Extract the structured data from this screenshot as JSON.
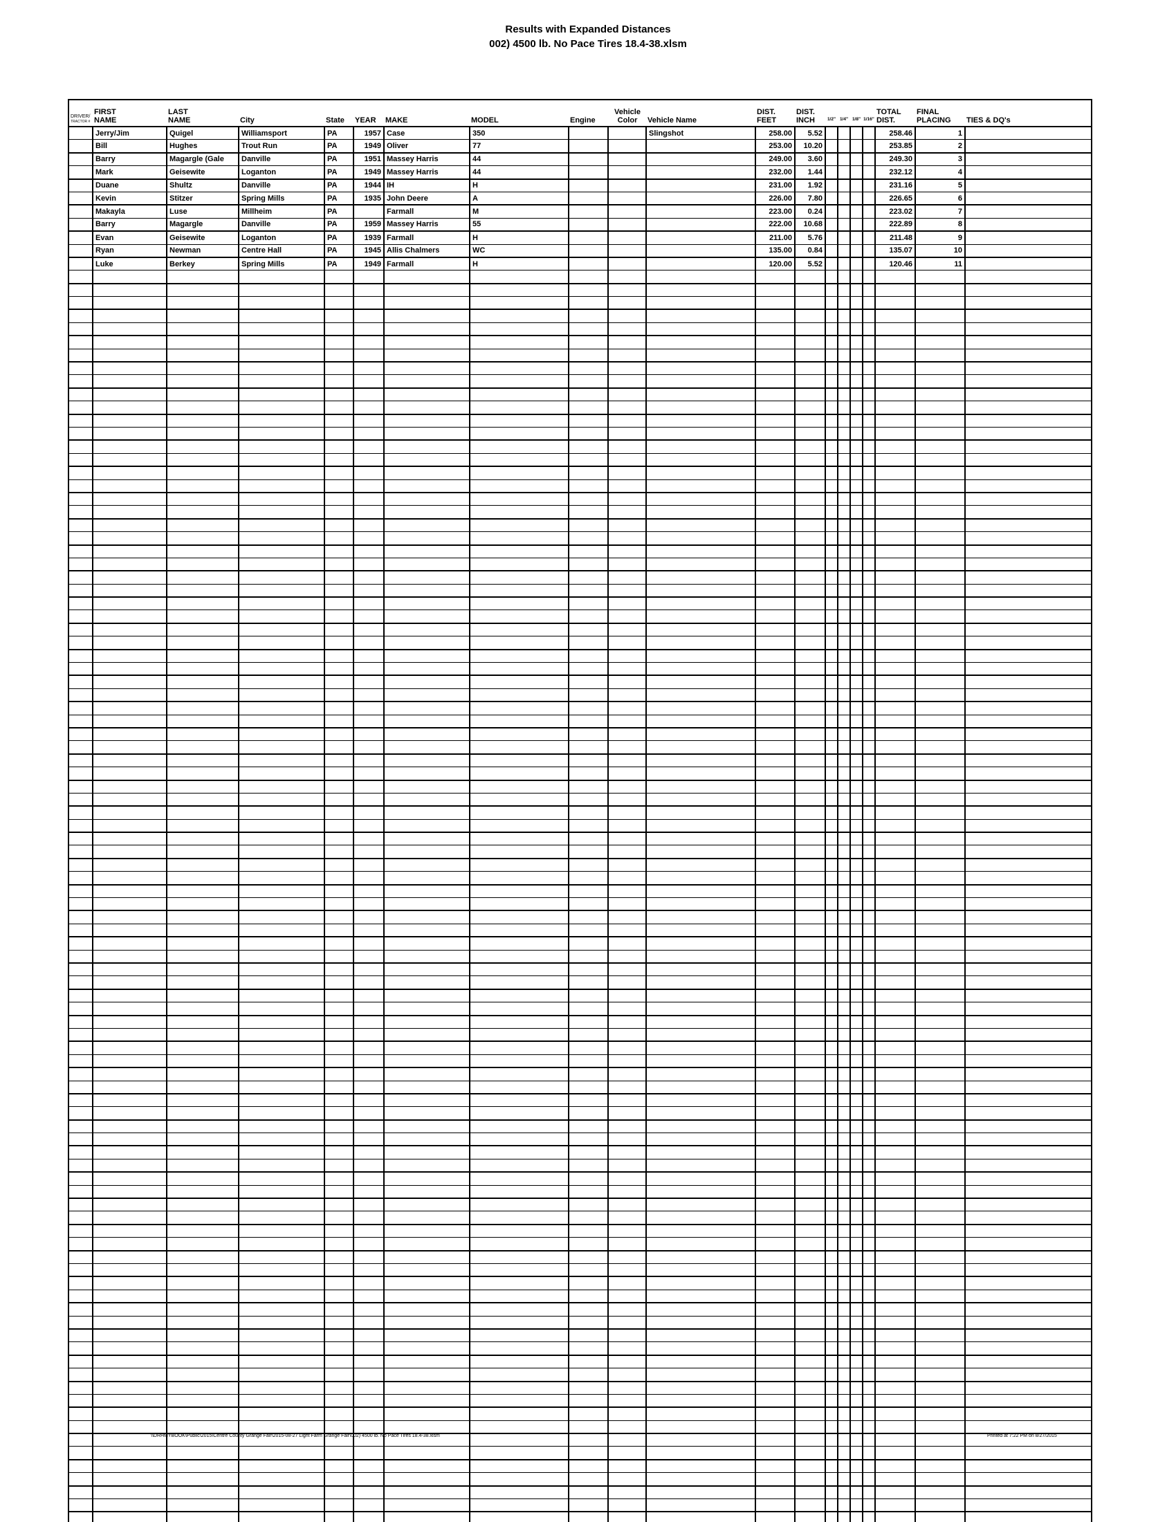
{
  "title": "Results with Expanded Distances",
  "subtitle": "002) 4500 lb. No Pace Tires 18.4-38.xlsm",
  "table": {
    "columns": [
      {
        "key": "tractor",
        "label": "DRIVER/\nTRACTOR #",
        "align": "left",
        "style": "driver"
      },
      {
        "key": "first_name",
        "label": "FIRST\nNAME",
        "align": "left"
      },
      {
        "key": "last_name",
        "label": "LAST\nNAME",
        "align": "left"
      },
      {
        "key": "city",
        "label": "City",
        "align": "left"
      },
      {
        "key": "state",
        "label": "State",
        "align": "left"
      },
      {
        "key": "year",
        "label": "YEAR",
        "align": "right"
      },
      {
        "key": "make",
        "label": "MAKE",
        "align": "left"
      },
      {
        "key": "model",
        "label": "MODEL",
        "align": "left"
      },
      {
        "key": "engine",
        "label": "Engine",
        "align": "left"
      },
      {
        "key": "vehicle_color",
        "label": "Vehicle\nColor",
        "align": "left",
        "header_align": "center"
      },
      {
        "key": "vehicle_name",
        "label": "Vehicle Name",
        "align": "left"
      },
      {
        "key": "dist_feet",
        "label": "DIST.\nFEET",
        "align": "right"
      },
      {
        "key": "dist_inch",
        "label": "DIST.\nINCH",
        "align": "right"
      },
      {
        "key": "half",
        "label": "1/2\"",
        "align": "center",
        "style": "small"
      },
      {
        "key": "quarter",
        "label": "1/4\"",
        "align": "center",
        "style": "small"
      },
      {
        "key": "eighth",
        "label": "1/8\"",
        "align": "center",
        "style": "small"
      },
      {
        "key": "sixteenth",
        "label": "1/16\"",
        "align": "center",
        "style": "small"
      },
      {
        "key": "total_dist",
        "label": "TOTAL\nDIST.",
        "align": "right"
      },
      {
        "key": "final_placing",
        "label": "FINAL\nPLACING",
        "align": "right"
      },
      {
        "key": "ties_dqs",
        "label": "TIES & DQ's",
        "align": "left"
      }
    ],
    "rows": [
      {
        "tractor": "",
        "first_name": "Jerry/Jim",
        "last_name": "Quigel",
        "city": "Williamsport",
        "state": "PA",
        "year": "1957",
        "make": "Case",
        "model": "350",
        "engine": "",
        "vehicle_color": "",
        "vehicle_name": "Slingshot",
        "dist_feet": "258.00",
        "dist_inch": "5.52",
        "half": "",
        "quarter": "",
        "eighth": "",
        "sixteenth": "",
        "total_dist": "258.46",
        "final_placing": "1",
        "ties_dqs": ""
      },
      {
        "tractor": "",
        "first_name": "Bill",
        "last_name": "Hughes",
        "city": "Trout Run",
        "state": "PA",
        "year": "1949",
        "make": "Oliver",
        "model": "77",
        "engine": "",
        "vehicle_color": "",
        "vehicle_name": "",
        "dist_feet": "253.00",
        "dist_inch": "10.20",
        "half": "",
        "quarter": "",
        "eighth": "",
        "sixteenth": "",
        "total_dist": "253.85",
        "final_placing": "2",
        "ties_dqs": ""
      },
      {
        "tractor": "",
        "first_name": "Barry",
        "last_name": "Magargle (Gale",
        "city": "Danville",
        "state": "PA",
        "year": "1951",
        "make": "Massey Harris",
        "model": "44",
        "engine": "",
        "vehicle_color": "",
        "vehicle_name": "",
        "dist_feet": "249.00",
        "dist_inch": "3.60",
        "half": "",
        "quarter": "",
        "eighth": "",
        "sixteenth": "",
        "total_dist": "249.30",
        "final_placing": "3",
        "ties_dqs": ""
      },
      {
        "tractor": "",
        "first_name": "Mark",
        "last_name": "Geisewite",
        "city": "Loganton",
        "state": "PA",
        "year": "1949",
        "make": "Massey Harris",
        "model": "44",
        "engine": "",
        "vehicle_color": "",
        "vehicle_name": "",
        "dist_feet": "232.00",
        "dist_inch": "1.44",
        "half": "",
        "quarter": "",
        "eighth": "",
        "sixteenth": "",
        "total_dist": "232.12",
        "final_placing": "4",
        "ties_dqs": ""
      },
      {
        "tractor": "",
        "first_name": "Duane",
        "last_name": "Shultz",
        "city": "Danville",
        "state": "PA",
        "year": "1944",
        "make": "IH",
        "model": "H",
        "engine": "",
        "vehicle_color": "",
        "vehicle_name": "",
        "dist_feet": "231.00",
        "dist_inch": "1.92",
        "half": "",
        "quarter": "",
        "eighth": "",
        "sixteenth": "",
        "total_dist": "231.16",
        "final_placing": "5",
        "ties_dqs": ""
      },
      {
        "tractor": "",
        "first_name": "Kevin",
        "last_name": "Stitzer",
        "city": "Spring Mills",
        "state": "PA",
        "year": "1935",
        "make": "John Deere",
        "model": "A",
        "engine": "",
        "vehicle_color": "",
        "vehicle_name": "",
        "dist_feet": "226.00",
        "dist_inch": "7.80",
        "half": "",
        "quarter": "",
        "eighth": "",
        "sixteenth": "",
        "total_dist": "226.65",
        "final_placing": "6",
        "ties_dqs": ""
      },
      {
        "tractor": "",
        "first_name": "Makayla",
        "last_name": "Luse",
        "city": "Millheim",
        "state": "PA",
        "year": "",
        "make": "Farmall",
        "model": "M",
        "engine": "",
        "vehicle_color": "",
        "vehicle_name": "",
        "dist_feet": "223.00",
        "dist_inch": "0.24",
        "half": "",
        "quarter": "",
        "eighth": "",
        "sixteenth": "",
        "total_dist": "223.02",
        "final_placing": "7",
        "ties_dqs": ""
      },
      {
        "tractor": "",
        "first_name": "Barry",
        "last_name": "Magargle",
        "city": "Danville",
        "state": "PA",
        "year": "1959",
        "make": "Massey Harris",
        "model": "55",
        "engine": "",
        "vehicle_color": "",
        "vehicle_name": "",
        "dist_feet": "222.00",
        "dist_inch": "10.68",
        "half": "",
        "quarter": "",
        "eighth": "",
        "sixteenth": "",
        "total_dist": "222.89",
        "final_placing": "8",
        "ties_dqs": ""
      },
      {
        "tractor": "",
        "first_name": "Evan",
        "last_name": "Geisewite",
        "city": "Loganton",
        "state": "PA",
        "year": "1939",
        "make": "Farmall",
        "model": "H",
        "engine": "",
        "vehicle_color": "",
        "vehicle_name": "",
        "dist_feet": "211.00",
        "dist_inch": "5.76",
        "half": "",
        "quarter": "",
        "eighth": "",
        "sixteenth": "",
        "total_dist": "211.48",
        "final_placing": "9",
        "ties_dqs": ""
      },
      {
        "tractor": "",
        "first_name": "Ryan",
        "last_name": "Newman",
        "city": "Centre Hall",
        "state": "PA",
        "year": "1945",
        "make": "Allis Chalmers",
        "model": "WC",
        "engine": "",
        "vehicle_color": "",
        "vehicle_name": "",
        "dist_feet": "135.00",
        "dist_inch": "0.84",
        "half": "",
        "quarter": "",
        "eighth": "",
        "sixteenth": "",
        "total_dist": "135.07",
        "final_placing": "10",
        "ties_dqs": ""
      },
      {
        "tractor": "",
        "first_name": "Luke",
        "last_name": "Berkey",
        "city": "Spring Mills",
        "state": "PA",
        "year": "1949",
        "make": "Farmall",
        "model": "H",
        "engine": "",
        "vehicle_color": "",
        "vehicle_name": "",
        "dist_feet": "120.00",
        "dist_inch": "5.52",
        "half": "",
        "quarter": "",
        "eighth": "",
        "sixteenth": "",
        "total_dist": "120.46",
        "final_placing": "11",
        "ties_dqs": ""
      }
    ],
    "empty_row_count": 97
  },
  "footer": {
    "left": "\\\\DRHMYBOOK\\Public\\2015\\Centre County Grange Fair\\2015-08-27 Light Farm Grange Fair\\002) 4500 lb. No Pace Tires 18.4-38.xlsm",
    "right": "Printed at 7:22 PM on 8/27/2015"
  }
}
